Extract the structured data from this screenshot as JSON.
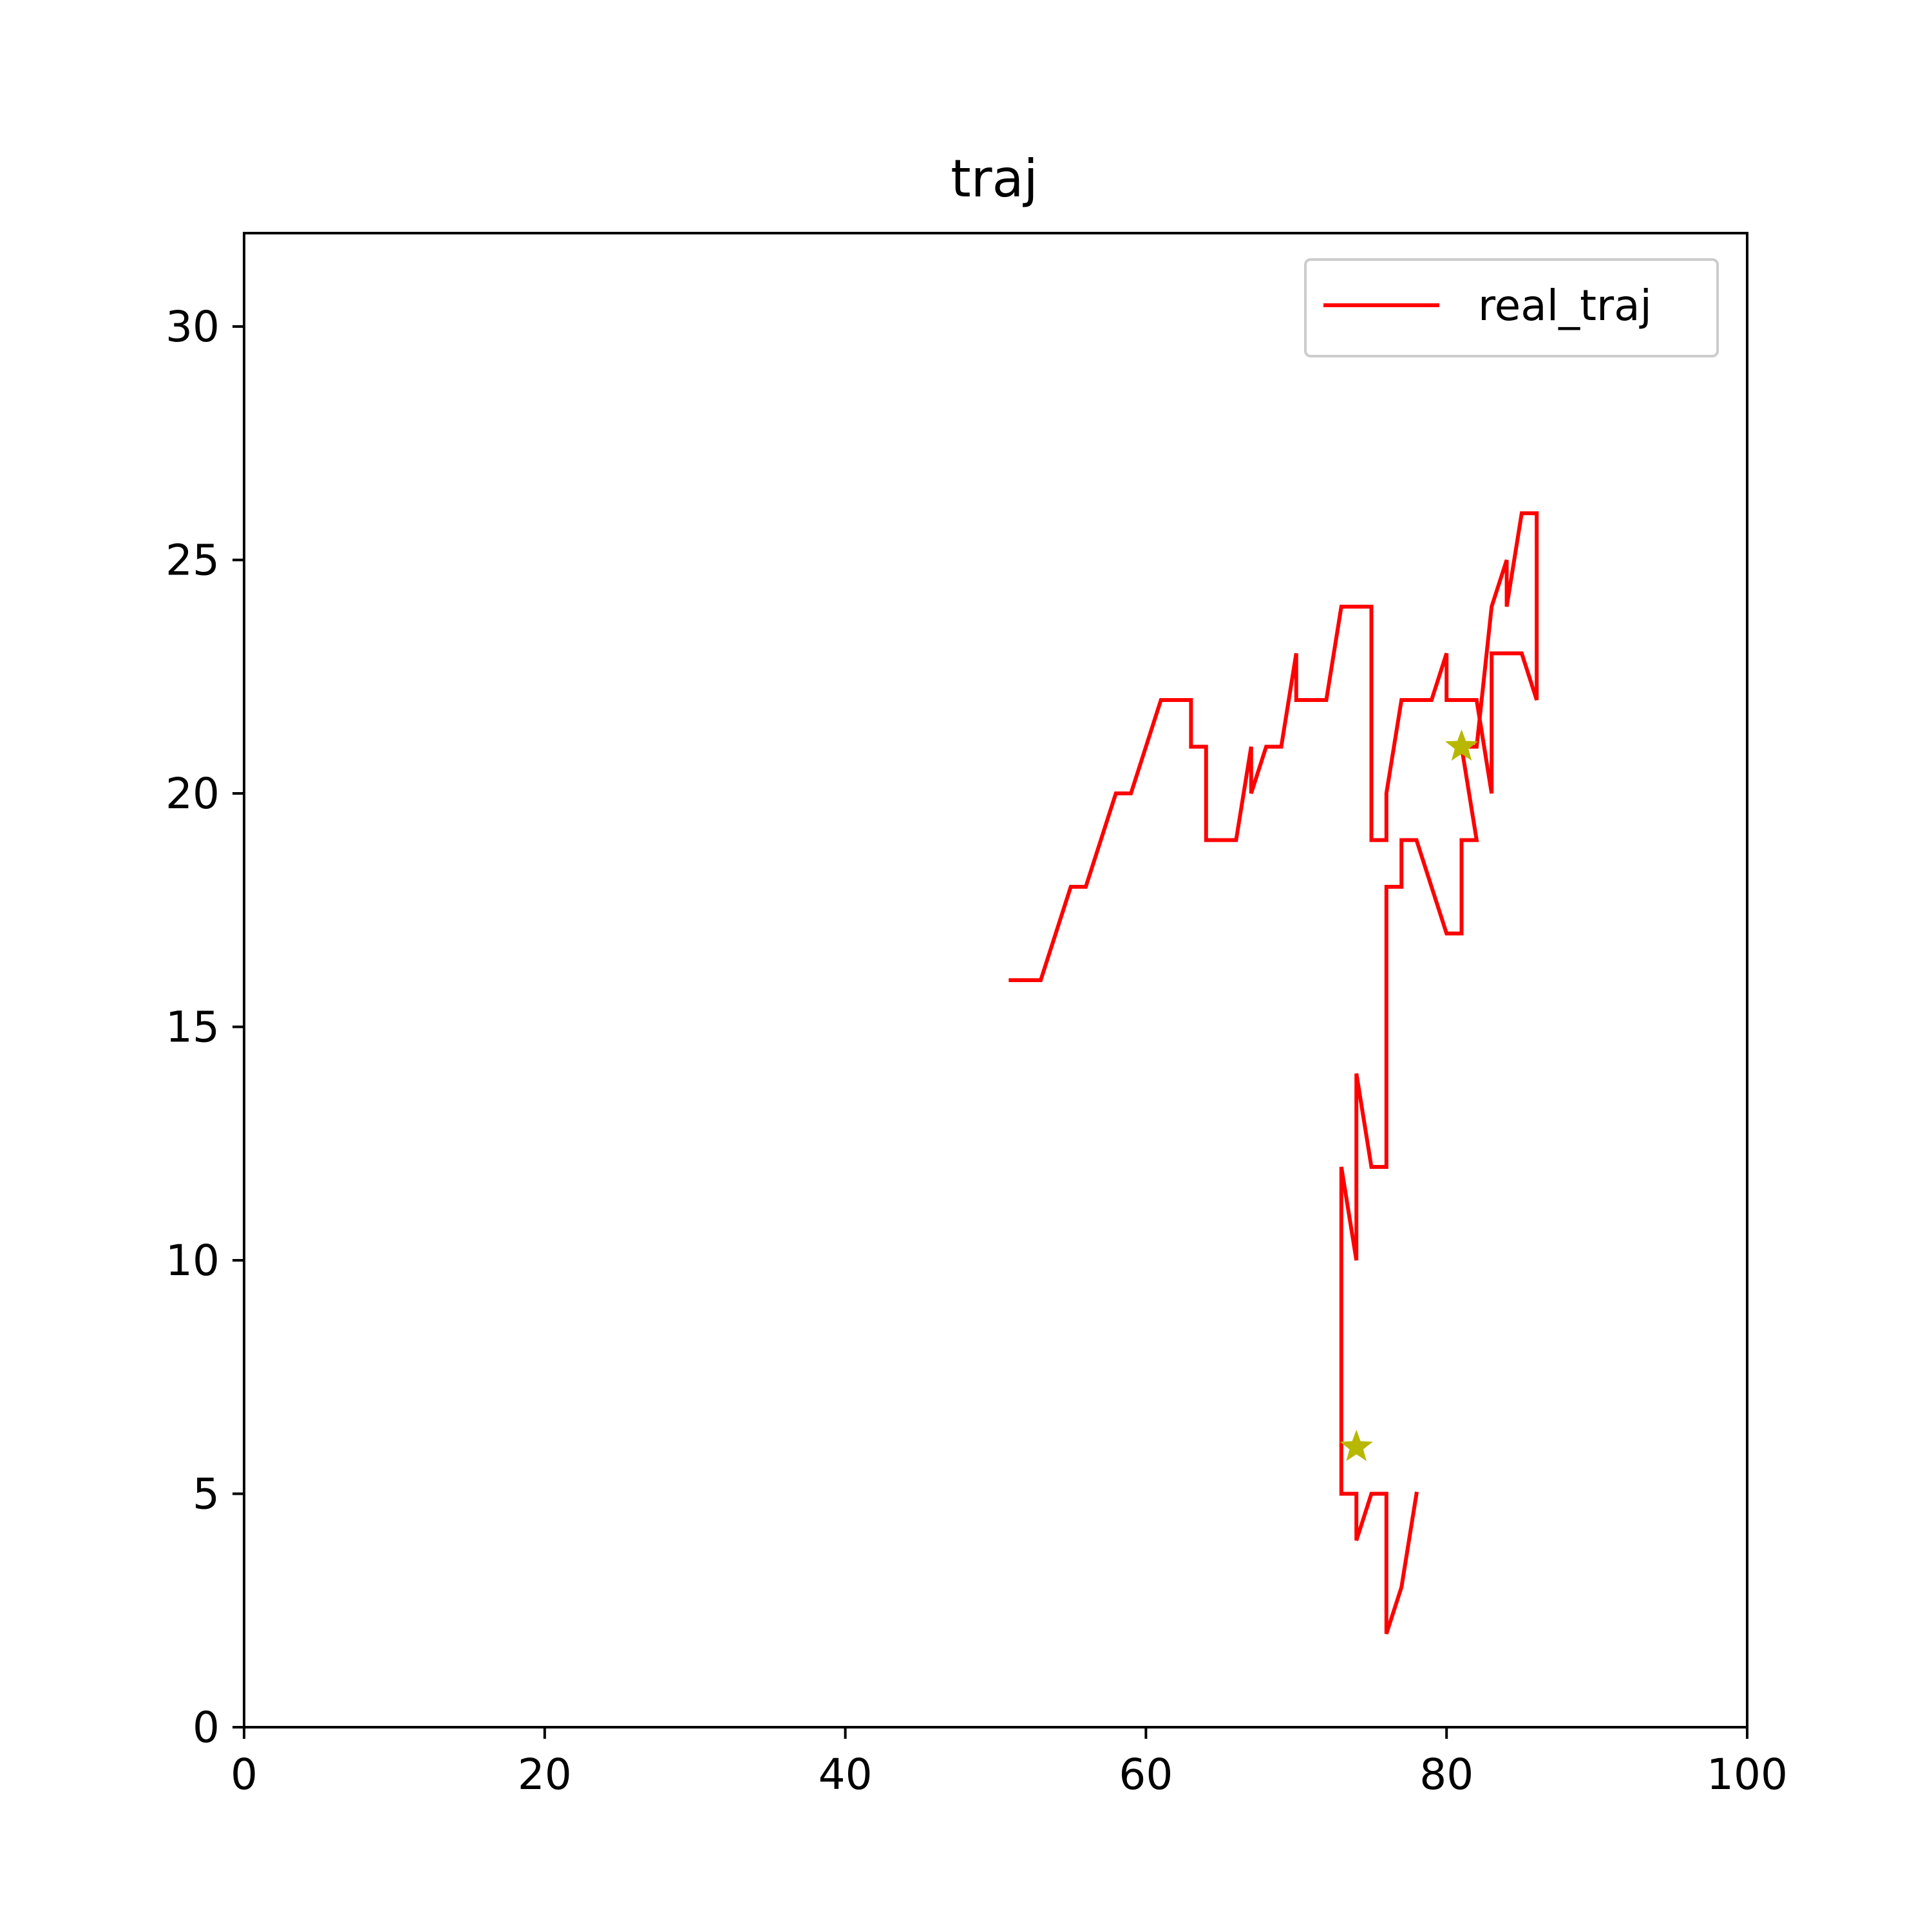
{
  "chart_data": {
    "type": "line",
    "title": "traj",
    "xlabel": "",
    "ylabel": "",
    "xlim": [
      0,
      100
    ],
    "ylim": [
      0,
      32
    ],
    "x_ticks": [
      0,
      20,
      40,
      60,
      80,
      100
    ],
    "y_ticks": [
      0,
      5,
      10,
      15,
      20,
      25,
      30
    ],
    "grid": false,
    "legend_position": "top-right",
    "series": [
      {
        "name": "real_traj",
        "color": "#ff0000",
        "points": [
          [
            51,
            16
          ],
          [
            53,
            16
          ],
          [
            55,
            18
          ],
          [
            56,
            18
          ],
          [
            58,
            20
          ],
          [
            59,
            20
          ],
          [
            61,
            22
          ],
          [
            63,
            22
          ],
          [
            63,
            21
          ],
          [
            64,
            21
          ],
          [
            64,
            19
          ],
          [
            66,
            19
          ],
          [
            67,
            21
          ],
          [
            67,
            20
          ],
          [
            68,
            21
          ],
          [
            69,
            21
          ],
          [
            70,
            23
          ],
          [
            70,
            22
          ],
          [
            72,
            22
          ],
          [
            73,
            24
          ],
          [
            75,
            24
          ],
          [
            75,
            19
          ],
          [
            76,
            19
          ],
          [
            76,
            20
          ],
          [
            77,
            22
          ],
          [
            79,
            22
          ],
          [
            80,
            23
          ],
          [
            80,
            22
          ],
          [
            82,
            22
          ],
          [
            83,
            20
          ],
          [
            83,
            23
          ],
          [
            85,
            23
          ],
          [
            86,
            22
          ],
          [
            86,
            26
          ],
          [
            85,
            26
          ],
          [
            84,
            24
          ],
          [
            84,
            25
          ],
          [
            83,
            24
          ],
          [
            82,
            21
          ],
          [
            81,
            21
          ],
          [
            82,
            19
          ],
          [
            81,
            19
          ],
          [
            81,
            17
          ],
          [
            80,
            17
          ],
          [
            78,
            19
          ],
          [
            77,
            19
          ],
          [
            77,
            18
          ],
          [
            76,
            18
          ],
          [
            76,
            15
          ],
          [
            76,
            12
          ],
          [
            75,
            12
          ],
          [
            74,
            14
          ],
          [
            74,
            10
          ],
          [
            73,
            12
          ],
          [
            73,
            5
          ],
          [
            74,
            5
          ],
          [
            74,
            4
          ],
          [
            75,
            5
          ],
          [
            76,
            5
          ],
          [
            76,
            2
          ],
          [
            77,
            3
          ],
          [
            78,
            5
          ]
        ]
      }
    ],
    "markers": {
      "color": "#b8b800",
      "symbol": "star",
      "points": [
        [
          81,
          21
        ],
        [
          74,
          6
        ]
      ]
    }
  }
}
